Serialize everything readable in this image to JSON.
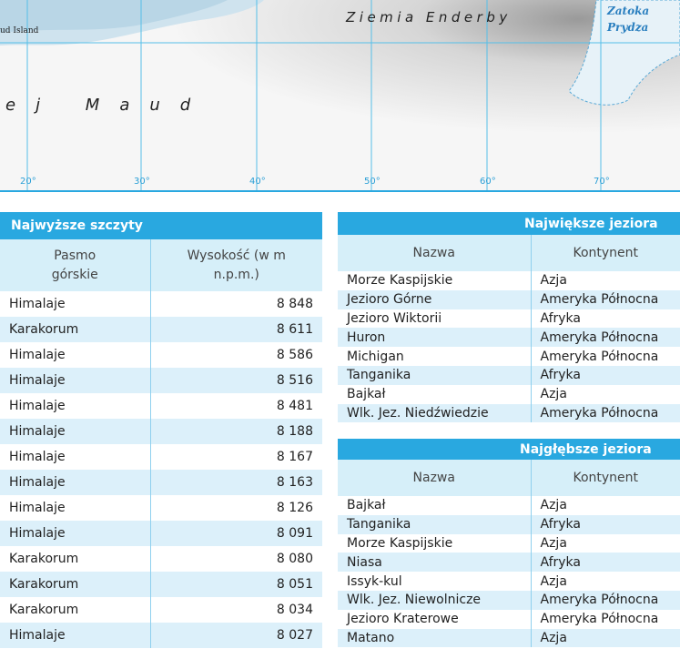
{
  "map": {
    "labels": {
      "island": "ud Island",
      "maud": "ej Maud",
      "enderby": "Ziemia Enderby",
      "zatoka": "Zatoka",
      "prydza": "Prydza"
    },
    "longitudes": [
      "20°",
      "30°",
      "40°",
      "50°",
      "60°",
      "70°"
    ]
  },
  "peaks": {
    "title": "Najwyższe szczyty",
    "columns": [
      "Pasmo górskie",
      "Wysokość (w m n.p.m.)"
    ],
    "rows": [
      [
        "Himalaje",
        "8 848"
      ],
      [
        "Karakorum",
        "8 611"
      ],
      [
        "Himalaje",
        "8 586"
      ],
      [
        "Himalaje",
        "8 516"
      ],
      [
        "Himalaje",
        "8 481"
      ],
      [
        "Himalaje",
        "8 188"
      ],
      [
        "Himalaje",
        "8 167"
      ],
      [
        "Himalaje",
        "8 163"
      ],
      [
        "Himalaje",
        "8 126"
      ],
      [
        "Himalaje",
        "8 091"
      ],
      [
        "Karakorum",
        "8 080"
      ],
      [
        "Karakorum",
        "8 051"
      ],
      [
        "Karakorum",
        "8 034"
      ],
      [
        "Himalaje",
        "8 027"
      ]
    ]
  },
  "largest_lakes": {
    "title": "Największe jeziora",
    "columns": [
      "Nazwa",
      "Kontynent"
    ],
    "rows": [
      [
        "Morze Kaspijskie",
        "Azja"
      ],
      [
        "Jezioro Górne",
        "Ameryka Północna"
      ],
      [
        "Jezioro Wiktorii",
        "Afryka"
      ],
      [
        "Huron",
        "Ameryka Północna"
      ],
      [
        "Michigan",
        "Ameryka Północna"
      ],
      [
        "Tanganika",
        "Afryka"
      ],
      [
        "Bajkał",
        "Azja"
      ],
      [
        "Wlk. Jez. Niedźwiedzie",
        "Ameryka Północna"
      ]
    ]
  },
  "deepest_lakes": {
    "title": "Najgłębsze jeziora",
    "columns": [
      "Nazwa",
      "Kontynent"
    ],
    "rows": [
      [
        "Bajkał",
        "Azja"
      ],
      [
        "Tanganika",
        "Afryka"
      ],
      [
        "Morze Kaspijskie",
        "Azja"
      ],
      [
        "Niasa",
        "Afryka"
      ],
      [
        "Issyk-kul",
        "Azja"
      ],
      [
        "Wlk. Jez. Niewolnicze",
        "Ameryka Północna"
      ],
      [
        "Jezioro Kraterowe",
        "Ameryka Północna"
      ],
      [
        "Matano",
        "Azja"
      ]
    ]
  }
}
